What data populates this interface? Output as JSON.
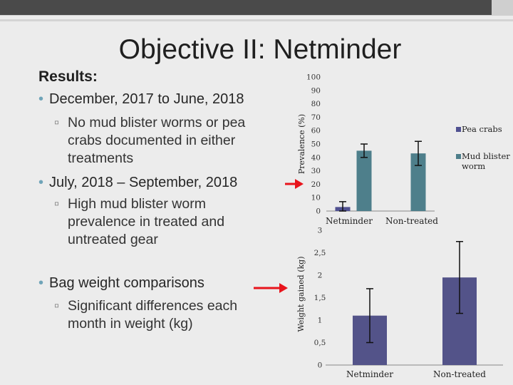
{
  "slide": {
    "title": "Objective II: Netminder",
    "results_label": "Results:",
    "bullets": [
      {
        "text": "December, 2017 to June, 2018"
      },
      {
        "text": "July, 2018 – September, 2018"
      },
      {
        "text": "Bag weight comparisons"
      }
    ],
    "sub_bullets": [
      {
        "text": "No mud blister worms or pea crabs documented in either treatments"
      },
      {
        "text": "High mud blister worm prevalence in treated and untreated gear"
      },
      {
        "text": "Significant differences each month in weight (kg)"
      }
    ],
    "bullet_marker": "•",
    "sub_marker": "▫",
    "colors": {
      "arrow": "#e8141c",
      "bullet": "#6fa4b8"
    }
  },
  "chart_data": [
    {
      "type": "bar",
      "categories": [
        "Netminder",
        "Non-treated"
      ],
      "series": [
        {
          "name": "Pea crabs",
          "values": [
            3,
            0
          ],
          "error": [
            4,
            0
          ],
          "color": "#505191"
        },
        {
          "name": "Mud blister worm",
          "values": [
            45,
            43
          ],
          "error": [
            5,
            9
          ],
          "color": "#4e7f8b"
        }
      ],
      "ylabel": "Prevalence (%)",
      "ylim": [
        0,
        100
      ],
      "yticks": [
        0,
        10,
        20,
        30,
        40,
        50,
        60,
        70,
        80,
        90,
        100
      ],
      "legend": "right",
      "grid": false
    },
    {
      "type": "bar",
      "categories": [
        "Netminder",
        "Non-treated"
      ],
      "series": [
        {
          "values": [
            1.1,
            1.95
          ],
          "error": [
            0.6,
            0.8
          ],
          "color": "#535389"
        }
      ],
      "ylabel": "Weight gained (kg)",
      "ylim": [
        0,
        3
      ],
      "yticks": [
        "0",
        "0,5",
        "1",
        "1,5",
        "2",
        "2,5",
        "3"
      ],
      "grid": false
    }
  ]
}
